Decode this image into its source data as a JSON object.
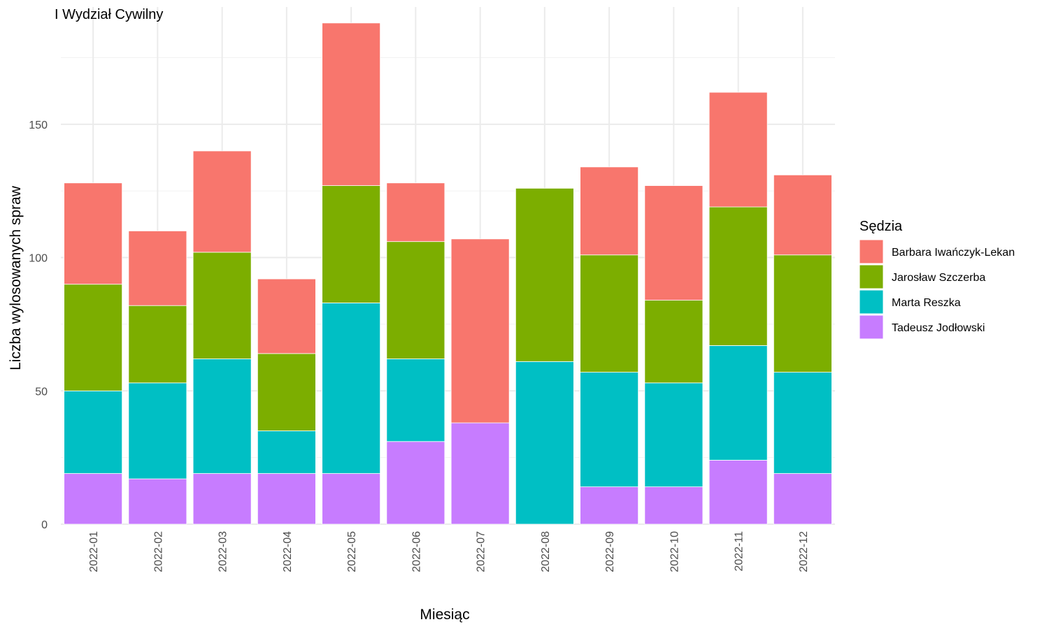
{
  "chart_data": {
    "type": "bar",
    "stacked": true,
    "title": "I Wydział Cywilny",
    "xlabel": "Miesiąc",
    "ylabel": "Liczba wylosowanych spraw",
    "ylim": [
      0,
      194
    ],
    "yticks": [
      0,
      50,
      100,
      150
    ],
    "grid": true,
    "legend_title": "Sędzia",
    "legend_position": "right",
    "categories": [
      "2022-01",
      "2022-02",
      "2022-03",
      "2022-04",
      "2022-05",
      "2022-06",
      "2022-07",
      "2022-08",
      "2022-09",
      "2022-10",
      "2022-11",
      "2022-12"
    ],
    "series": [
      {
        "name": "Tadeusz Jodłowski",
        "color": "#C77CFF",
        "values": [
          19,
          17,
          19,
          19,
          19,
          31,
          38,
          0,
          14,
          14,
          24,
          19
        ]
      },
      {
        "name": "Marta Reszka",
        "color": "#00BFC4",
        "values": [
          31,
          36,
          43,
          16,
          64,
          31,
          0,
          61,
          43,
          39,
          43,
          38
        ]
      },
      {
        "name": "Jarosław Szczerba",
        "color": "#7CAE00",
        "values": [
          40,
          29,
          40,
          29,
          44,
          44,
          0,
          65,
          44,
          31,
          52,
          44
        ]
      },
      {
        "name": "Barbara Iwańczyk-Lekan",
        "color": "#F8766D",
        "values": [
          38,
          28,
          38,
          28,
          61,
          22,
          69,
          0,
          33,
          43,
          43,
          30
        ]
      }
    ],
    "legend_order": [
      "Barbara Iwańczyk-Lekan",
      "Jarosław Szczerba",
      "Marta Reszka",
      "Tadeusz Jodłowski"
    ]
  }
}
